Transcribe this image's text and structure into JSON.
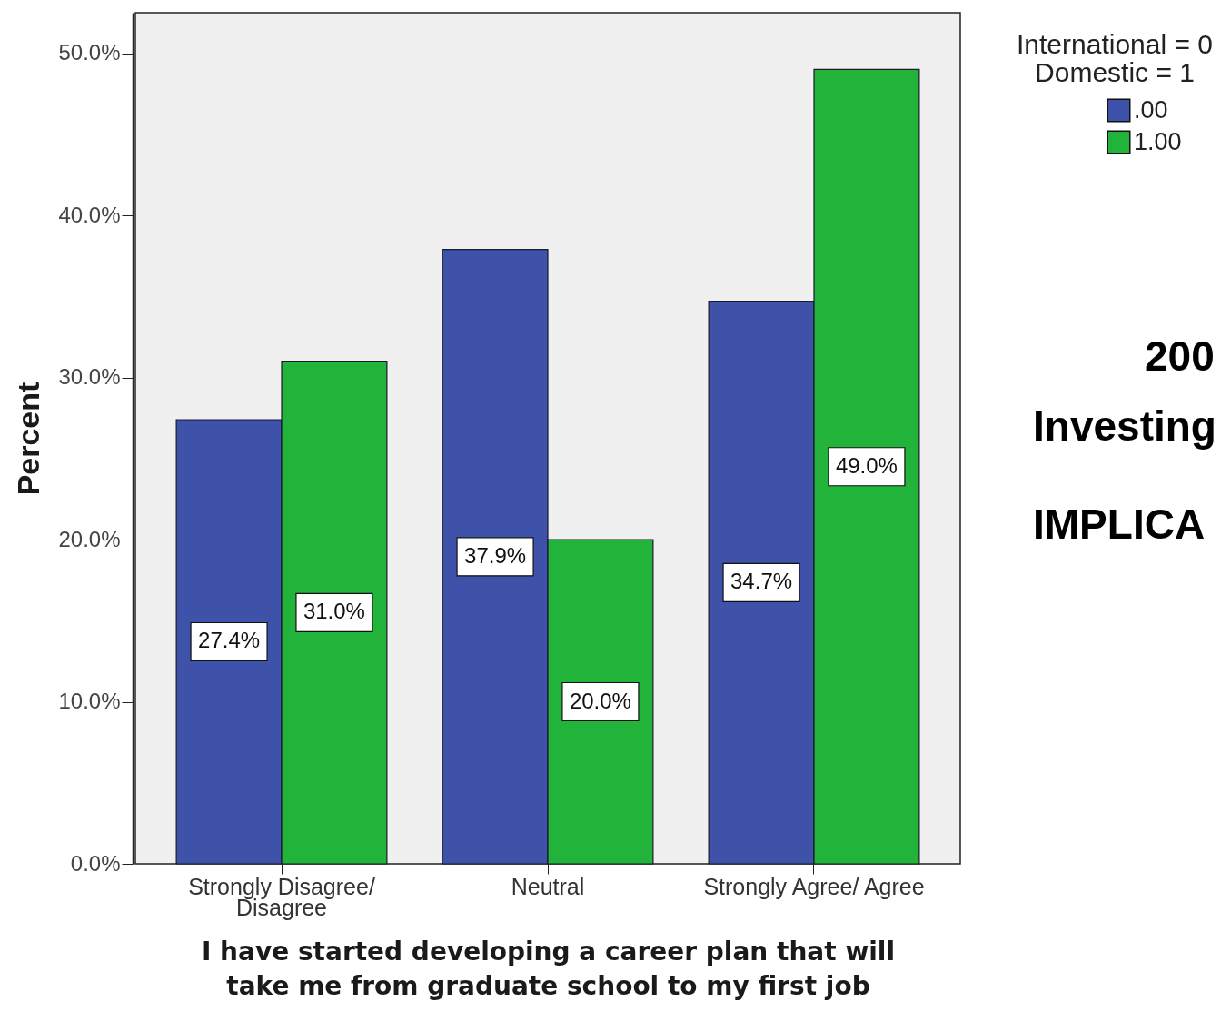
{
  "chart_data": {
    "type": "bar",
    "xlabel": "I have started developing a career plan that will take me from graduate school to my first job",
    "ylabel": "Percent",
    "legend_title": "International = 0 Domestic = 1",
    "categories": [
      "Strongly Disagree/ Disagree",
      "Neutral",
      "Strongly Agree/ Agree"
    ],
    "series": [
      {
        "name": ".00",
        "color": "#3d52a8",
        "values": [
          27.4,
          37.9,
          34.7
        ],
        "value_labels": [
          "27.4%",
          "37.9%",
          "34.7%"
        ]
      },
      {
        "name": "1.00",
        "color": "#22b33b",
        "values": [
          31.0,
          20.0,
          49.0
        ],
        "value_labels": [
          "31.0%",
          "20.0%",
          "49.0%"
        ]
      }
    ],
    "ylim": [
      0,
      52.5
    ],
    "yticks": [
      {
        "value": 0,
        "label": "0.0%"
      },
      {
        "value": 10,
        "label": "10.0%"
      },
      {
        "value": 20,
        "label": "20.0%"
      },
      {
        "value": 30,
        "label": "30.0%"
      },
      {
        "value": 40,
        "label": "40.0%"
      },
      {
        "value": 50,
        "label": "50.0%"
      }
    ],
    "legend": "top right",
    "annotations": [
      "200",
      "Investing",
      "IMPLICA"
    ]
  }
}
